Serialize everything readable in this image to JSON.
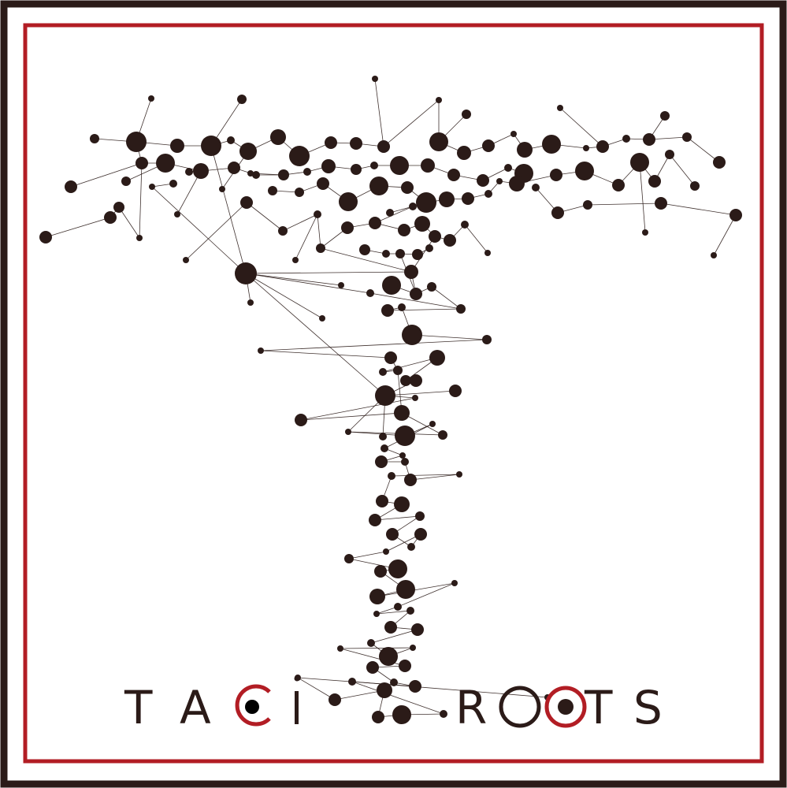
{
  "logo": {
    "brand_left": "TACI",
    "brand_right": "ROOTS",
    "colors": {
      "frame_outer": "#2b1b18",
      "frame_inner": "#b21d24",
      "ink": "#2b1b18",
      "accent": "#b21d24",
      "background": "#ffffff"
    },
    "icon": "network-tree-icon"
  }
}
